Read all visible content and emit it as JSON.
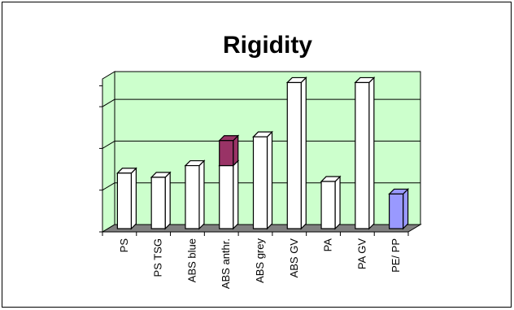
{
  "chart_data": {
    "type": "bar",
    "title": "Rigidity",
    "categories": [
      "PS",
      "PS TSG",
      "ABS blue",
      "ABS anthr.",
      "ABS grey",
      "ABS GV",
      "PA",
      "PA GV",
      "PE/ PP"
    ],
    "series": [
      {
        "values": [
          1.33,
          1.23,
          1.51,
          1.51,
          2.2,
          3.5,
          1.13,
          3.5,
          0.83
        ]
      },
      {
        "values": [
          0,
          0,
          0,
          0.6,
          0,
          0,
          0,
          0,
          0
        ]
      }
    ],
    "ylim": [
      0,
      3.5
    ],
    "y_gridlines": [
      1,
      2,
      3
    ],
    "grid": true,
    "ytick_labels_visible": false,
    "colors": {
      "wall": "#ccffcc",
      "floor": "#808080",
      "bar": "#ffffff",
      "bar_edge": "#000000",
      "stack_top": "#993366",
      "highlight_bar": "#9999ff"
    },
    "highlight_index": 8,
    "stack_index": 3
  }
}
